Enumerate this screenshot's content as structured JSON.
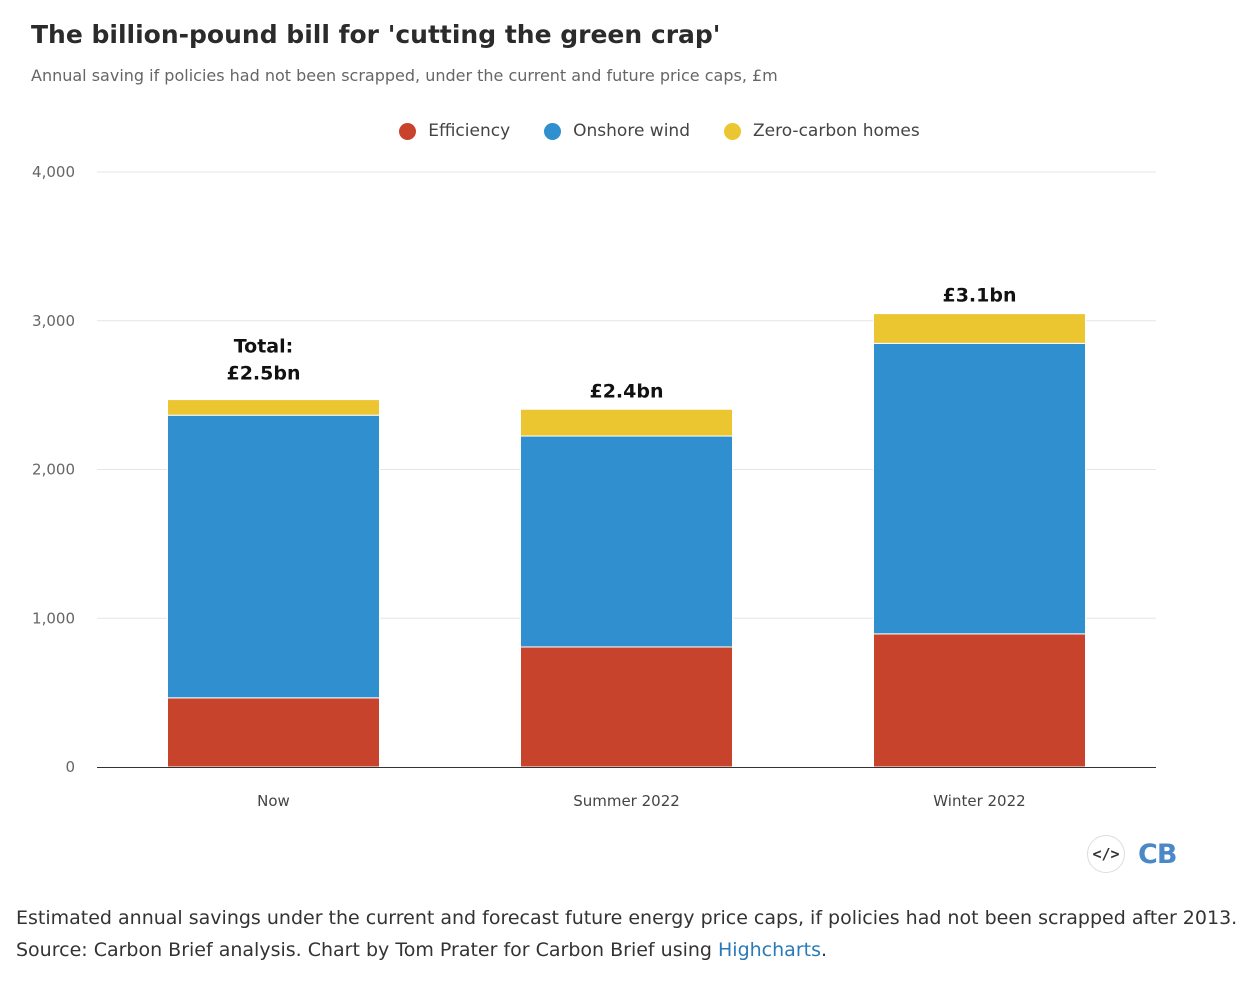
{
  "colors": {
    "efficiency": "#c8432b",
    "onshore_wind": "#308fce",
    "zero_carbon_homes": "#ecc630",
    "grid": "#e6e6e6",
    "axis": "#333333"
  },
  "chart_data": {
    "type": "bar",
    "stacked": true,
    "title": "The billion-pound bill for 'cutting the green crap'",
    "subtitle": "Annual saving if policies had not been scrapped, under the current and future price caps, £m",
    "categories": [
      "Now",
      "Summer 2022",
      "Winter 2022"
    ],
    "series": [
      {
        "name": "Efficiency",
        "values": [
          465,
          807,
          895
        ]
      },
      {
        "name": "Onshore wind",
        "values": [
          1900,
          1418,
          1953
        ]
      },
      {
        "name": "Zero-carbon homes",
        "values": [
          105,
          180,
          200
        ]
      }
    ],
    "stack_labels": [
      {
        "line1": "Total:",
        "line2": "£2.5bn"
      },
      {
        "line1": "",
        "line2": "£2.4bn"
      },
      {
        "line1": "",
        "line2": "£3.1bn"
      }
    ],
    "yticks": [
      "0",
      "1,000",
      "2,000",
      "3,000",
      "4,000"
    ],
    "ylim": [
      0,
      4000
    ],
    "xlabel": "",
    "ylabel": "",
    "legend_position": "top-center"
  },
  "footer": {
    "embed_icon": "</>",
    "logo_text": "CB",
    "caption_line1": "Estimated annual savings under the current and forecast future energy price caps, if policies had not been scrapped after 2013.",
    "caption_line2_prefix": "Source: Carbon Brief analysis. Chart by Tom Prater for Carbon Brief using ",
    "caption_link": "Highcharts",
    "caption_line2_suffix": "."
  }
}
